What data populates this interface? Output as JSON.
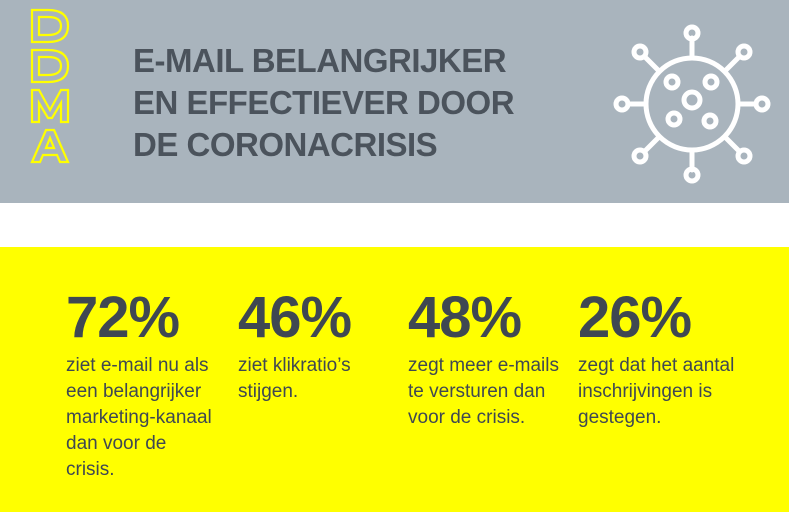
{
  "header": {
    "logo_text": "DDMA",
    "title_lines": [
      "E-MAIL BELANGRIJKER",
      "EN EFFECTIEVER DOOR",
      "DE CORONACRISIS"
    ],
    "icon": "virus-icon",
    "background": "#a9b4bd",
    "logo_color": "#ffff00",
    "title_color": "#4b535c"
  },
  "stats": {
    "background": "#ffff00",
    "text_color": "#3f4852",
    "items": [
      {
        "value": "72%",
        "description": "ziet e-mail nu als een belangrijker marketing-kanaal dan voor de crisis."
      },
      {
        "value": "46%",
        "description": "ziet klikratio’s stijgen."
      },
      {
        "value": "48%",
        "description": "zegt meer e-mails te versturen dan voor de crisis."
      },
      {
        "value": "26%",
        "description": "zegt dat het aantal inschrijvingen is gestegen."
      }
    ]
  }
}
